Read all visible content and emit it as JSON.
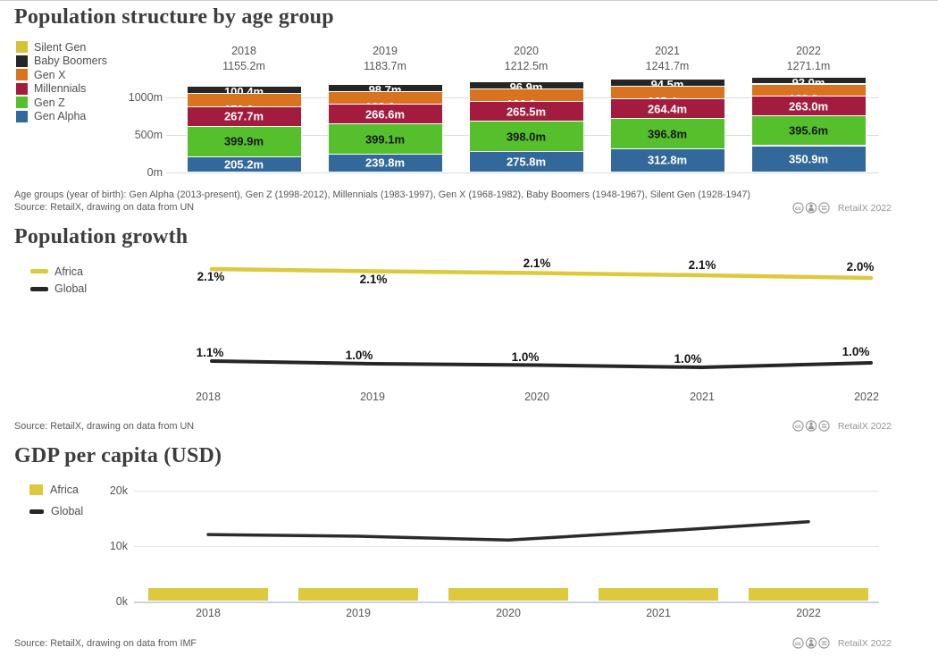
{
  "attribution": {
    "label": "RetailX 2022"
  },
  "population_structure": {
    "title": "Population structure by age group",
    "legend": [
      {
        "label": "Silent Gen",
        "color": "#d6c235"
      },
      {
        "label": "Baby Boomers",
        "color": "#262626"
      },
      {
        "label": "Gen X",
        "color": "#d8731f"
      },
      {
        "label": "Millennials",
        "color": "#a31c40"
      },
      {
        "label": "Gen Z",
        "color": "#56bf2c"
      },
      {
        "label": "Gen Alpha",
        "color": "#33689b"
      }
    ],
    "footnote": "Age groups (year of birth): Gen Alpha (2013-present), Gen Z (1998-2012), Millennials (1983-1997), Gen X (1968-1982), Baby Boomers (1948-1967), Silent Gen (1928-1947)",
    "source": "Source: RetailX, drawing on data from UN",
    "chart_data": {
      "type": "bar",
      "stacked": true,
      "unit": "millions of people",
      "categories": [
        "2018",
        "2019",
        "2020",
        "2021",
        "2022"
      ],
      "totals_labels": [
        "1155.2m",
        "1183.7m",
        "1212.5m",
        "1241.7m",
        "1271.1m"
      ],
      "yticks": [
        {
          "value": 0,
          "label": "0m"
        },
        {
          "value": 500,
          "label": "500m"
        },
        {
          "value": 1000,
          "label": "1000m"
        }
      ],
      "series": [
        {
          "name": "Gen Alpha",
          "color": "#33689b",
          "values": [
            205.2,
            239.8,
            275.8,
            312.8,
            350.9
          ],
          "labels": [
            "205.2m",
            "239.8m",
            "275.8m",
            "312.8m",
            "350.9m"
          ]
        },
        {
          "name": "Gen Z",
          "color": "#56bf2c",
          "values": [
            399.9,
            399.1,
            398.0,
            396.8,
            395.6
          ],
          "labels": [
            "399.9m",
            "399.1m",
            "398.0m",
            "396.8m",
            "395.6m"
          ]
        },
        {
          "name": "Millennials",
          "color": "#a31c40",
          "values": [
            267.7,
            266.6,
            265.5,
            264.4,
            263.0
          ],
          "labels": [
            "267.7m",
            "266.6m",
            "265.5m",
            "264.4m",
            "263.0m"
          ]
        },
        {
          "name": "Gen X",
          "color": "#d8731f",
          "values": [
            170.0,
            168.6,
            166.9,
            165.4,
            163.2
          ],
          "labels": [
            "",
            "",
            "",
            "",
            ""
          ],
          "note": "labels clipped/hidden in chart; values estimated from bar heights and totals"
        },
        {
          "name": "Baby Boomers",
          "color": "#262626",
          "values": [
            100.4,
            98.7,
            96.9,
            94.5,
            92.0
          ],
          "labels": [
            "100.4m",
            "98.7m",
            "96.9m",
            "94.5m",
            "92.0m"
          ]
        },
        {
          "name": "Silent Gen",
          "color": "#d6c235",
          "values": [
            12.0,
            10.9,
            9.4,
            7.8,
            6.4
          ],
          "labels": [
            "",
            "",
            "",
            "",
            ""
          ],
          "note": "sliver segment, no label visible; values estimated from totals"
        }
      ]
    }
  },
  "population_growth": {
    "title": "Population growth",
    "legend": [
      {
        "label": "Africa",
        "color": "#ddc93b"
      },
      {
        "label": "Global",
        "color": "#262626"
      }
    ],
    "source": "Source: RetailX, drawing on data from UN",
    "chart_data": {
      "type": "line",
      "unit": "percent annual growth",
      "x": [
        "2018",
        "2019",
        "2020",
        "2021",
        "2022"
      ],
      "series": [
        {
          "name": "Africa",
          "color": "#ddc93b",
          "values": [
            2.1,
            2.1,
            2.1,
            2.1,
            2.0
          ],
          "labels": [
            "2.1%",
            "2.1%",
            "2.1%",
            "2.1%",
            "2.0%"
          ]
        },
        {
          "name": "Global",
          "color": "#262626",
          "values": [
            1.1,
            1.0,
            1.0,
            1.0,
            1.0
          ],
          "labels": [
            "1.1%",
            "1.0%",
            "1.0%",
            "1.0%",
            "1.0%"
          ]
        }
      ],
      "legend_position": "left",
      "grid": false
    }
  },
  "gdp_per_capita": {
    "title": "GDP per capita (USD)",
    "legend": [
      {
        "label": "Africa",
        "color": "#ddc93b"
      },
      {
        "label": "Global",
        "color": "#262626"
      }
    ],
    "source": "Source: RetailX, drawing on data from IMF",
    "chart_data": {
      "type": "combo",
      "unit": "thousand USD",
      "x": [
        "2018",
        "2019",
        "2020",
        "2021",
        "2022"
      ],
      "yticks": [
        {
          "value": 0,
          "label": "0k"
        },
        {
          "value": 10,
          "label": "10k"
        },
        {
          "value": 20,
          "label": "20k"
        }
      ],
      "ylim": [
        0,
        21
      ],
      "grid": true,
      "series": [
        {
          "name": "Africa",
          "type": "bar",
          "color": "#ddc93b",
          "values": [
            2.4,
            2.4,
            2.3,
            2.4,
            2.4
          ],
          "note": "no data labels shown; $k values estimated from bar heights"
        },
        {
          "name": "Global",
          "type": "line",
          "color": "#2b2b2b",
          "values": [
            12.0,
            11.7,
            11.0,
            12.6,
            14.3
          ],
          "note": "no data labels shown; $k values estimated from line position"
        }
      ]
    }
  }
}
